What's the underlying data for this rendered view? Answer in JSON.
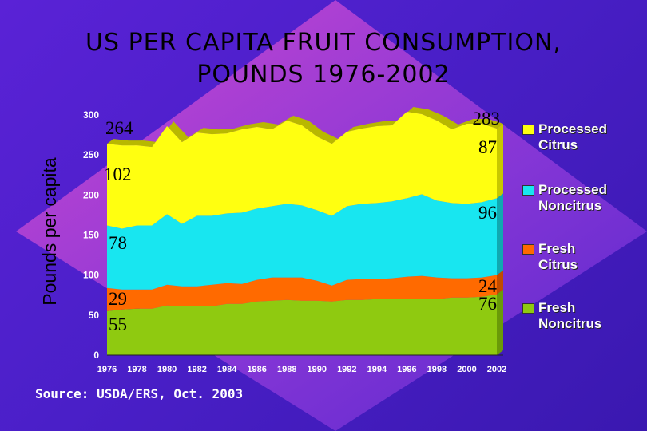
{
  "title": {
    "line1": "US PER CAPITA FRUIT CONSUMPTION,",
    "line2": "POUNDS 1976-2002"
  },
  "source": "Source: USDA/ERS, Oct. 2003",
  "colors": {
    "processed_citrus": "#ffff10",
    "processed_noncitrus": "#18e6f0",
    "fresh_citrus": "#ff6a00",
    "fresh_noncitrus": "#8fca10",
    "background": "#4a1fc8"
  },
  "chart_data": {
    "type": "area",
    "stacked": true,
    "title": "US PER CAPITA FRUIT CONSUMPTION, POUNDS 1976-2002",
    "ylabel": "Pounds per capita",
    "xlabel": "",
    "ylim": [
      0,
      300
    ],
    "yticks": [
      "0",
      "50",
      "100",
      "150",
      "200",
      "250",
      "300"
    ],
    "xticks": [
      "1976",
      "1978",
      "1980",
      "1982",
      "1984",
      "1986",
      "1988",
      "1990",
      "1992",
      "1994",
      "1996",
      "1998",
      "2000",
      "2002"
    ],
    "x": [
      1976,
      1977,
      1978,
      1979,
      1980,
      1981,
      1982,
      1983,
      1984,
      1985,
      1986,
      1987,
      1988,
      1989,
      1990,
      1991,
      1992,
      1993,
      1994,
      1995,
      1996,
      1997,
      1998,
      1999,
      2000,
      2001,
      2002
    ],
    "series": [
      {
        "name": "Fresh Noncitrus",
        "color": "#8fca10",
        "values": [
          55,
          57,
          58,
          58,
          62,
          61,
          61,
          61,
          64,
          64,
          67,
          68,
          69,
          68,
          68,
          67,
          69,
          69,
          70,
          70,
          70,
          70,
          70,
          72,
          72,
          73,
          76
        ]
      },
      {
        "name": "Fresh Citrus",
        "color": "#ff6a00",
        "values": [
          29,
          25,
          24,
          24,
          26,
          25,
          25,
          27,
          26,
          25,
          27,
          29,
          28,
          29,
          25,
          20,
          25,
          26,
          25,
          26,
          28,
          29,
          27,
          24,
          24,
          24,
          24
        ]
      },
      {
        "name": "Processed Noncitrus",
        "color": "#18e6f0",
        "values": [
          78,
          76,
          80,
          80,
          88,
          78,
          88,
          86,
          87,
          89,
          89,
          89,
          92,
          90,
          88,
          87,
          92,
          94,
          95,
          96,
          98,
          102,
          96,
          94,
          93,
          94,
          96
        ]
      },
      {
        "name": "Processed Citrus",
        "color": "#ffff10",
        "values": [
          102,
          104,
          100,
          98,
          110,
          102,
          104,
          102,
          100,
          104,
          102,
          96,
          104,
          100,
          92,
          90,
          93,
          94,
          96,
          95,
          108,
          100,
          100,
          92,
          100,
          98,
          87
        ]
      }
    ],
    "annotations": {
      "start": {
        "total": "264",
        "processed_citrus": "102",
        "processed_noncitrus": "78",
        "fresh_citrus": "29",
        "fresh_noncitrus": "55"
      },
      "end": {
        "total": "283",
        "processed_citrus": "87",
        "processed_noncitrus": "96",
        "fresh_citrus": "24",
        "fresh_noncitrus": "76"
      }
    },
    "legend": [
      {
        "label_line1": "Processed",
        "label_line2": "Citrus",
        "color": "#ffff10"
      },
      {
        "label_line1": "Processed",
        "label_line2": "Noncitrus",
        "color": "#18e6f0"
      },
      {
        "label_line1": "Fresh",
        "label_line2": "Citrus",
        "color": "#ff6a00"
      },
      {
        "label_line1": "Fresh",
        "label_line2": "Noncitrus",
        "color": "#8fca10"
      }
    ],
    "legend_position": "right",
    "grid": false
  }
}
